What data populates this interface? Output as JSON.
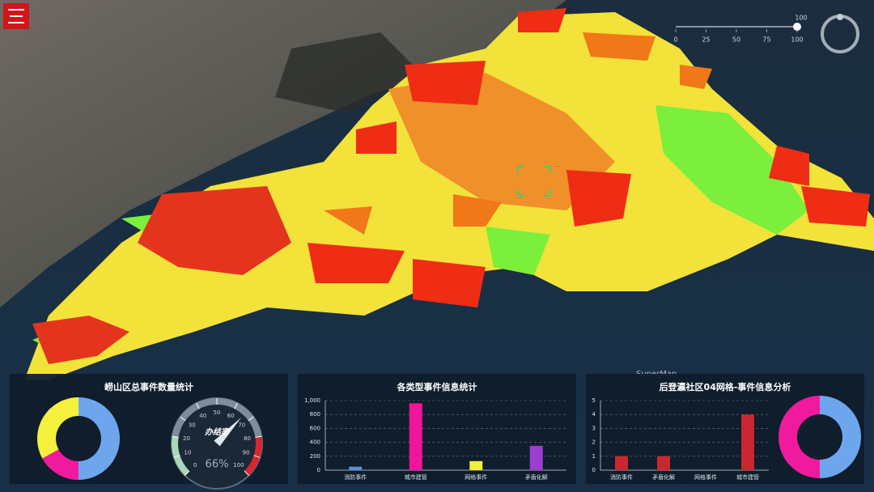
{
  "watermark": "SuperMap",
  "slider": {
    "value": 100,
    "xlim": [
      0,
      100
    ],
    "xticks": [
      0,
      25,
      50,
      75,
      100
    ]
  },
  "chart_data": [
    {
      "type": "pie",
      "title": "崂山区总事件数量统计",
      "values": [
        50,
        17,
        33
      ],
      "colors": [
        "#6ea6ee",
        "#ef1a9e",
        "#f4f03c"
      ]
    },
    {
      "type": "gauge",
      "label": "办结率",
      "values": [
        66
      ],
      "value_labels": [
        "66%"
      ],
      "ylim": [
        0,
        100
      ],
      "yticks": [
        0,
        10,
        20,
        30,
        40,
        50,
        60,
        70,
        80,
        90,
        100
      ]
    },
    {
      "type": "bar",
      "title": "各类型事件信息统计",
      "categories": [
        "消防事件",
        "城市建管",
        "网格事件",
        "矛盾化解"
      ],
      "values": [
        50,
        960,
        130,
        350
      ],
      "colors": [
        "#5b8fd9",
        "#f0169a",
        "#f2ee3d",
        "#9b3fd0"
      ],
      "ylim": [
        0,
        1000
      ],
      "yticks": [
        0,
        200,
        400,
        600,
        800,
        {
          "value": 1000,
          "label": "1,000"
        }
      ],
      "grid": true
    },
    {
      "type": "bar",
      "title": "后登瀛社区04网格-事件信息分析",
      "categories": [
        "消防事件",
        "矛盾化解",
        "网格事件",
        "城市建管"
      ],
      "values": [
        1,
        1,
        0,
        4
      ],
      "colors": [
        "#c8282d",
        "#c8282d",
        "#c8282d",
        "#c8282d"
      ],
      "ylim": [
        0,
        5
      ],
      "yticks": [
        0,
        1,
        2,
        3,
        4,
        5
      ],
      "grid": true
    },
    {
      "type": "pie",
      "values": [
        50,
        50
      ],
      "colors": [
        "#6ea6ee",
        "#ef1a9e"
      ]
    }
  ]
}
